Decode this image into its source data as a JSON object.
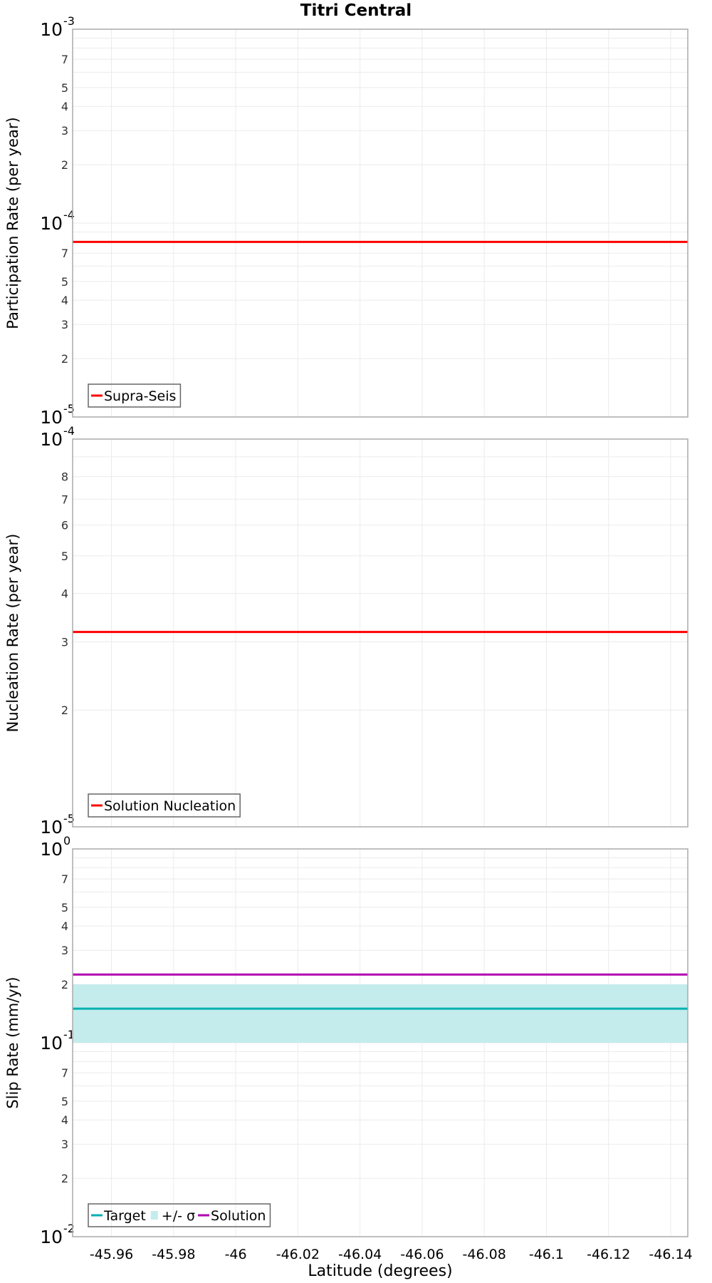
{
  "chart_data": {
    "title": "Titri Central",
    "xlabel": "Latitude (degrees)",
    "x_ticks": [
      -45.96,
      -45.98,
      -46,
      -46.02,
      -46.04,
      -46.06,
      -46.08,
      -46.1,
      -46.12,
      -46.14
    ],
    "x_tick_labels": [
      "-45.96",
      "-45.98",
      "-46",
      "-46.02",
      "-46.04",
      "-46.06",
      "-46.08",
      "-46.1",
      "-46.12",
      "-46.14"
    ],
    "xlim": [
      -45.9475,
      -46.1455
    ],
    "grid": true,
    "panels": [
      {
        "type": "line",
        "ylabel": "Participation Rate (per year)",
        "yscale": "log",
        "ylim": [
          1e-05,
          0.001
        ],
        "major_tick_labels": [
          {
            "mant": "10",
            "exp": "-3",
            "value": 0.001
          },
          {
            "mant": "10",
            "exp": "-4",
            "value": 0.0001
          },
          {
            "mant": "10",
            "exp": "-5",
            "value": 1e-05
          }
        ],
        "minor_tick_labels": [
          "7",
          "5",
          "4",
          "3",
          "2"
        ],
        "legend_position": "lower left",
        "series": [
          {
            "name": "Supra-Seis",
            "color": "#ff0000",
            "kind": "line",
            "x": [
              -45.9475,
              -46.1455
            ],
            "values": [
              8e-05,
              8e-05
            ]
          }
        ]
      },
      {
        "type": "line",
        "ylabel": "Nucleation Rate (per year)",
        "yscale": "log",
        "ylim": [
          1e-05,
          0.0001
        ],
        "major_tick_labels": [
          {
            "mant": "10",
            "exp": "-4",
            "value": 0.0001
          },
          {
            "mant": "10",
            "exp": "-5",
            "value": 1e-05
          }
        ],
        "minor_tick_labels": [
          "8",
          "7",
          "6",
          "5",
          "4",
          "3",
          "2"
        ],
        "legend_position": "lower left",
        "series": [
          {
            "name": "Solution Nucleation",
            "color": "#ff0000",
            "kind": "line",
            "x": [
              -45.9475,
              -46.1455
            ],
            "values": [
              3.18e-05,
              3.18e-05
            ]
          }
        ]
      },
      {
        "type": "line",
        "ylabel": "Slip Rate (mm/yr)",
        "yscale": "log",
        "ylim": [
          0.01,
          1
        ],
        "major_tick_labels": [
          {
            "mant": "10",
            "exp": "0",
            "value": 1
          },
          {
            "mant": "10",
            "exp": "-1",
            "value": 0.1
          },
          {
            "mant": "10",
            "exp": "-2",
            "value": 0.01
          }
        ],
        "minor_tick_labels": [
          "7",
          "5",
          "4",
          "3",
          "2"
        ],
        "legend_position": "lower left",
        "series": [
          {
            "name": "Target",
            "color": "#00b0b0",
            "kind": "line",
            "x": [
              -45.9475,
              -46.1455
            ],
            "values": [
              0.15,
              0.15
            ]
          },
          {
            "name": "+/- σ",
            "color": "#c4ecec",
            "kind": "band",
            "x": [
              -45.9475,
              -46.1455
            ],
            "lower": [
              0.1,
              0.1
            ],
            "upper": [
              0.2,
              0.2
            ]
          },
          {
            "name": "Solution",
            "color": "#b000b0",
            "kind": "line",
            "x": [
              -45.9475,
              -46.1455
            ],
            "values": [
              0.225,
              0.225
            ]
          }
        ]
      }
    ]
  }
}
